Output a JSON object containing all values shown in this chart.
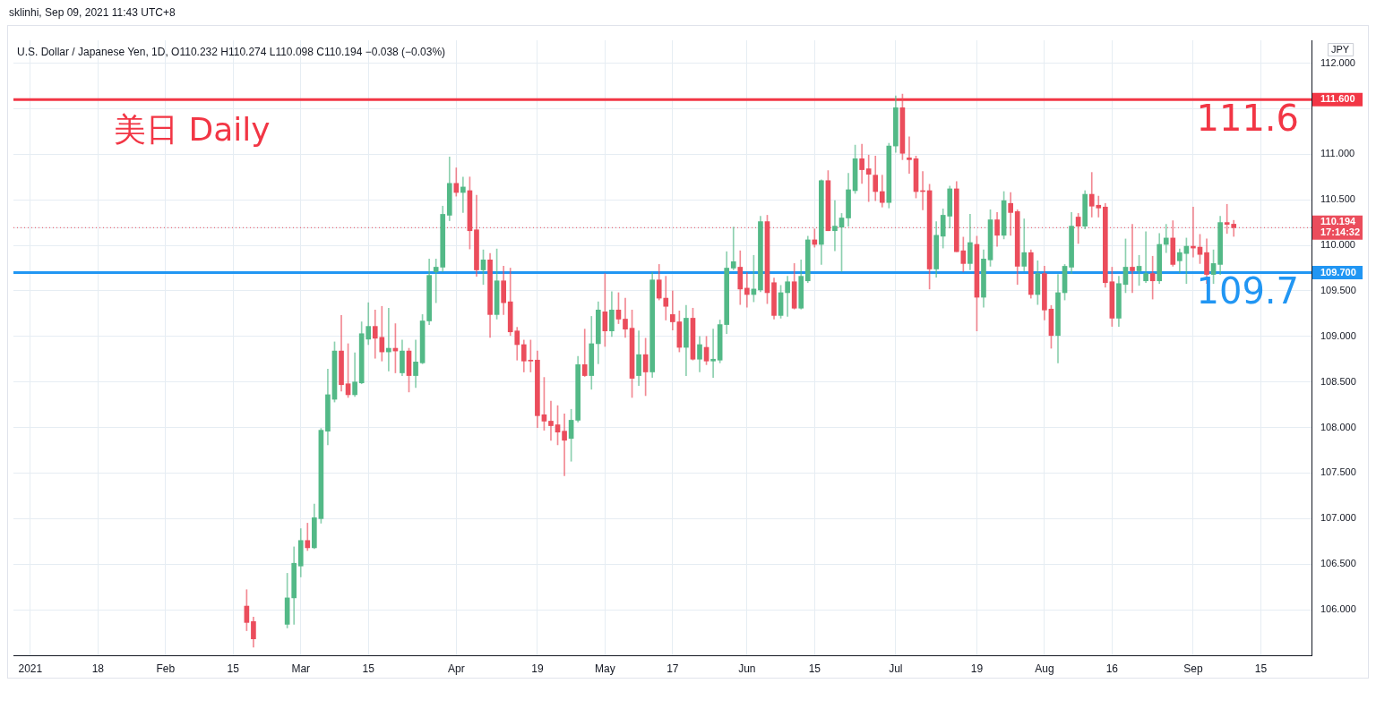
{
  "chart_data": {
    "type": "candlestick",
    "title": "美日 Daily",
    "subtitle": "U.S. Dollar / Japanese Yen, 1D, O110.232 H110.274 L110.098 C110.194 −0.038 (−0.03%)",
    "ylabel": "JPY",
    "annotations": [
      "sklinhi, Sep 09, 2021 11:43 UTC+8"
    ],
    "categories": [
      null,
      null,
      "2021",
      null,
      null,
      null,
      null,
      null,
      null,
      null,
      null,
      null,
      "18",
      null,
      null,
      null,
      null,
      null,
      null,
      null,
      null,
      null,
      "Feb",
      null,
      null,
      null,
      null,
      null,
      null,
      null,
      null,
      null,
      "15",
      null,
      null,
      null,
      null,
      null,
      null,
      null,
      null,
      null,
      "Mar",
      null,
      null,
      null,
      null,
      null,
      null,
      null,
      null,
      null,
      "15",
      null,
      null,
      null,
      null,
      null,
      null,
      null,
      null,
      null,
      null,
      null,
      null,
      "Apr",
      null,
      null,
      null,
      null,
      null,
      null,
      null,
      null,
      null,
      null,
      null,
      "19",
      null,
      null,
      null,
      null,
      null,
      null,
      null,
      null,
      null,
      "May",
      null,
      null,
      null,
      null,
      null,
      null,
      null,
      null,
      null,
      "17",
      null,
      null,
      null,
      null,
      null,
      null,
      null,
      null,
      null,
      null,
      "Jun",
      null,
      null,
      null,
      null,
      null,
      null,
      null,
      null,
      null,
      "15",
      null,
      null,
      null,
      null,
      null,
      null,
      null,
      null,
      null,
      null,
      null,
      "Jul",
      null,
      null,
      null,
      null,
      null,
      null,
      null,
      null,
      null,
      null,
      null,
      "19",
      null,
      null,
      null,
      null,
      null,
      null,
      null,
      null,
      null,
      "Aug",
      null,
      null,
      null,
      null,
      null,
      null,
      null,
      null,
      null,
      "16",
      null,
      null,
      null,
      null,
      null,
      null,
      null,
      null,
      null,
      null,
      null,
      "Sep",
      null,
      null,
      null,
      null,
      null,
      null,
      null,
      null,
      null,
      "15",
      null,
      null,
      null,
      null,
      null,
      null,
      null
    ],
    "ohlc": [
      null,
      null,
      null,
      null,
      null,
      null,
      null,
      null,
      null,
      null,
      null,
      null,
      null,
      null,
      null,
      null,
      null,
      null,
      null,
      null,
      null,
      null,
      null,
      null,
      null,
      null,
      null,
      null,
      null,
      null,
      null,
      null,
      null,
      null,
      [
        106.04,
        106.22,
        105.77,
        105.86
      ],
      [
        105.87,
        105.92,
        105.59,
        105.68
      ],
      null,
      null,
      null,
      null,
      [
        105.84,
        106.4,
        105.8,
        106.13
      ],
      [
        106.13,
        106.69,
        105.84,
        106.51
      ],
      [
        106.48,
        106.89,
        106.36,
        106.76
      ],
      [
        106.76,
        106.95,
        106.65,
        106.68
      ],
      [
        106.68,
        107.16,
        106.67,
        107.01
      ],
      [
        107.0,
        107.99,
        106.95,
        107.97
      ],
      [
        107.96,
        108.64,
        107.81,
        108.36
      ],
      [
        108.31,
        108.94,
        108.28,
        108.84
      ],
      [
        108.84,
        109.23,
        108.4,
        108.47
      ],
      [
        108.48,
        108.92,
        108.33,
        108.36
      ],
      [
        108.36,
        108.82,
        108.34,
        108.5
      ],
      [
        108.49,
        109.16,
        108.48,
        109.03
      ],
      [
        108.97,
        109.37,
        108.91,
        109.11
      ],
      [
        109.11,
        109.29,
        108.76,
        108.98
      ],
      [
        108.99,
        109.33,
        108.73,
        108.83
      ],
      [
        108.83,
        109.31,
        108.62,
        108.87
      ],
      [
        108.87,
        109.14,
        108.6,
        108.84
      ],
      [
        108.6,
        108.96,
        108.57,
        108.84
      ],
      [
        108.84,
        108.87,
        108.39,
        108.57
      ],
      [
        108.57,
        108.96,
        108.44,
        108.72
      ],
      [
        108.71,
        109.24,
        108.7,
        109.17
      ],
      [
        109.17,
        109.85,
        109.13,
        109.67
      ],
      [
        109.71,
        109.85,
        109.37,
        109.76
      ],
      [
        109.76,
        110.43,
        109.71,
        110.34
      ],
      [
        110.33,
        110.97,
        110.27,
        110.68
      ],
      [
        110.68,
        110.85,
        110.54,
        110.58
      ],
      [
        110.58,
        110.75,
        110.36,
        110.64
      ],
      [
        110.6,
        110.75,
        109.96,
        110.16
      ],
      [
        110.17,
        110.55,
        109.66,
        109.73
      ],
      [
        109.73,
        109.95,
        109.57,
        109.84
      ],
      [
        109.84,
        109.91,
        108.99,
        109.24
      ],
      [
        109.24,
        109.96,
        109.19,
        109.61
      ],
      [
        109.61,
        109.77,
        109.24,
        109.37
      ],
      [
        109.38,
        109.75,
        109.01,
        109.05
      ],
      [
        109.06,
        109.1,
        108.74,
        108.91
      ],
      [
        108.91,
        108.96,
        108.61,
        108.73
      ],
      [
        108.74,
        108.96,
        108.61,
        108.73
      ],
      [
        108.74,
        108.84,
        108.0,
        108.13
      ],
      [
        108.14,
        108.55,
        107.97,
        108.07
      ],
      [
        108.07,
        108.29,
        107.86,
        108.02
      ],
      [
        108.03,
        108.24,
        107.81,
        107.95
      ],
      [
        107.96,
        108.15,
        107.47,
        107.86
      ],
      [
        107.88,
        108.2,
        107.63,
        108.08
      ],
      [
        108.08,
        108.78,
        108.06,
        108.69
      ],
      [
        108.69,
        109.08,
        108.56,
        108.57
      ],
      [
        108.57,
        109.22,
        108.42,
        108.92
      ],
      [
        108.92,
        109.38,
        108.7,
        109.29
      ],
      [
        109.27,
        109.69,
        108.89,
        109.06
      ],
      [
        109.06,
        109.49,
        109.0,
        109.29
      ],
      [
        109.29,
        109.48,
        109.14,
        109.19
      ],
      [
        109.19,
        109.42,
        108.99,
        109.08
      ],
      [
        109.09,
        109.29,
        108.33,
        108.54
      ],
      [
        108.57,
        109.06,
        108.46,
        108.8
      ],
      [
        108.8,
        108.98,
        108.35,
        108.61
      ],
      [
        108.61,
        109.7,
        108.55,
        109.62
      ],
      [
        109.62,
        109.79,
        109.4,
        109.42
      ],
      [
        109.42,
        109.66,
        109.18,
        109.33
      ],
      [
        109.24,
        109.5,
        109.07,
        109.16
      ],
      [
        109.16,
        109.28,
        108.83,
        108.88
      ],
      [
        108.88,
        109.34,
        108.57,
        109.2
      ],
      [
        109.2,
        109.31,
        108.74,
        108.75
      ],
      [
        108.75,
        109.0,
        108.61,
        108.91
      ],
      [
        108.88,
        109.0,
        108.69,
        108.73
      ],
      [
        108.73,
        109.08,
        108.55,
        108.75
      ],
      [
        108.74,
        109.18,
        108.71,
        109.13
      ],
      [
        109.13,
        109.93,
        109.03,
        109.75
      ],
      [
        109.75,
        110.2,
        109.73,
        109.82
      ],
      [
        109.76,
        109.94,
        109.35,
        109.52
      ],
      [
        109.53,
        109.7,
        109.32,
        109.46
      ],
      [
        109.46,
        109.89,
        109.38,
        109.52
      ],
      [
        109.51,
        110.32,
        109.49,
        110.26
      ],
      [
        110.26,
        110.33,
        109.36,
        109.48
      ],
      [
        109.59,
        109.64,
        109.19,
        109.23
      ],
      [
        109.23,
        109.56,
        109.2,
        109.48
      ],
      [
        109.48,
        109.66,
        109.22,
        109.6
      ],
      [
        109.6,
        109.8,
        109.3,
        109.31
      ],
      [
        109.31,
        109.84,
        109.3,
        109.66
      ],
      [
        109.61,
        110.1,
        109.59,
        110.06
      ],
      [
        110.06,
        110.18,
        109.98,
        110.01
      ],
      [
        110.01,
        110.72,
        109.79,
        110.71
      ],
      [
        110.71,
        110.82,
        110.16,
        110.16
      ],
      [
        110.16,
        110.49,
        109.94,
        110.21
      ],
      [
        110.2,
        110.35,
        109.71,
        110.3
      ],
      [
        110.3,
        110.79,
        110.21,
        110.61
      ],
      [
        110.6,
        111.1,
        110.57,
        110.95
      ],
      [
        110.95,
        111.11,
        110.68,
        110.83
      ],
      [
        110.84,
        110.99,
        110.48,
        110.78
      ],
      [
        110.77,
        110.98,
        110.49,
        110.59
      ],
      [
        110.59,
        110.77,
        110.42,
        110.47
      ],
      [
        110.47,
        111.12,
        110.41,
        111.09
      ],
      [
        111.09,
        111.64,
        111.02,
        111.51
      ],
      [
        111.51,
        111.66,
        110.94,
        111.01
      ],
      [
        110.96,
        111.19,
        110.79,
        110.94
      ],
      [
        110.95,
        110.98,
        110.52,
        110.59
      ],
      [
        110.6,
        110.81,
        110.39,
        110.59
      ],
      [
        110.6,
        110.67,
        109.52,
        109.74
      ],
      [
        109.74,
        110.26,
        109.65,
        110.11
      ],
      [
        110.1,
        110.4,
        109.97,
        110.33
      ],
      [
        110.32,
        110.65,
        110.19,
        110.62
      ],
      [
        110.62,
        110.7,
        109.93,
        109.93
      ],
      [
        109.94,
        110.09,
        109.71,
        109.8
      ],
      [
        109.8,
        110.34,
        109.73,
        110.03
      ],
      [
        110.01,
        110.1,
        109.06,
        109.43
      ],
      [
        109.43,
        109.95,
        109.32,
        109.85
      ],
      [
        109.84,
        110.39,
        109.77,
        110.28
      ],
      [
        110.28,
        110.36,
        109.99,
        110.11
      ],
      [
        110.11,
        110.59,
        110.07,
        110.49
      ],
      [
        110.46,
        110.58,
        110.11,
        110.36
      ],
      [
        110.37,
        110.39,
        109.57,
        109.77
      ],
      [
        109.77,
        110.29,
        109.72,
        109.92
      ],
      [
        109.92,
        109.95,
        109.42,
        109.46
      ],
      [
        109.46,
        109.83,
        109.35,
        109.69
      ],
      [
        109.69,
        109.77,
        109.18,
        109.29
      ],
      [
        109.3,
        109.34,
        108.87,
        109.01
      ],
      [
        109.01,
        109.68,
        108.71,
        109.48
      ],
      [
        109.48,
        109.79,
        109.4,
        109.77
      ],
      [
        109.76,
        110.36,
        109.69,
        110.21
      ],
      [
        110.31,
        110.35,
        110.02,
        110.21
      ],
      [
        110.21,
        110.6,
        110.18,
        110.56
      ],
      [
        110.56,
        110.8,
        110.31,
        110.43
      ],
      [
        110.44,
        110.54,
        110.31,
        110.41
      ],
      [
        110.42,
        110.46,
        109.54,
        109.59
      ],
      [
        109.6,
        109.76,
        109.11,
        109.2
      ],
      [
        109.2,
        109.66,
        109.11,
        109.58
      ],
      [
        109.57,
        110.07,
        109.48,
        109.76
      ],
      [
        109.76,
        110.23,
        109.48,
        109.72
      ],
      [
        109.72,
        109.89,
        109.56,
        109.77
      ],
      [
        109.61,
        110.15,
        109.59,
        109.69
      ],
      [
        109.69,
        109.88,
        109.41,
        109.61
      ],
      [
        109.61,
        110.13,
        109.58,
        110.01
      ],
      [
        110.01,
        110.23,
        109.92,
        110.08
      ],
      [
        110.08,
        110.27,
        109.77,
        109.79
      ],
      [
        109.83,
        109.96,
        109.7,
        109.92
      ],
      [
        109.91,
        110.08,
        109.58,
        109.99
      ],
      [
        109.99,
        110.42,
        109.87,
        109.97
      ],
      [
        109.98,
        110.12,
        109.8,
        109.9
      ],
      [
        109.92,
        110.07,
        109.58,
        109.68
      ],
      [
        109.68,
        109.95,
        109.58,
        109.8
      ],
      [
        109.79,
        110.32,
        109.68,
        110.25
      ],
      [
        110.25,
        110.45,
        110.13,
        110.23
      ],
      [
        110.232,
        110.274,
        110.098,
        110.194
      ],
      null,
      null,
      null,
      null,
      null,
      null,
      null,
      null,
      null,
      null,
      null
    ],
    "ylim": [
      105.5,
      112.25
    ],
    "yticks": [
      {
        "value": 106,
        "label": "106.000"
      },
      {
        "value": 106.5,
        "label": "106.500"
      },
      {
        "value": 107,
        "label": "107.000"
      },
      {
        "value": 107.5,
        "label": "107.500"
      },
      {
        "value": 108,
        "label": "108.000"
      },
      {
        "value": 108.5,
        "label": "108.500"
      },
      {
        "value": 109,
        "label": "109.000"
      },
      {
        "value": 109.5,
        "label": "109.500"
      },
      {
        "value": 109.7,
        "label": "109.700"
      },
      {
        "value": 110,
        "label": "110.000"
      },
      {
        "value": 110.194,
        "label": "110.194\n17:14:32"
      },
      {
        "value": 110.5,
        "label": "110.500"
      },
      {
        "value": 111,
        "label": "111.000"
      },
      {
        "value": 111.5,
        "label": null
      },
      {
        "value": 111.6,
        "label": "111.600"
      },
      {
        "value": 112,
        "label": "112.000"
      }
    ],
    "ref_lines": [
      {
        "axis": "y",
        "value": 111.6,
        "label": "111.6",
        "color": "#f23645"
      },
      {
        "axis": "y",
        "value": 109.7,
        "label": "109.7",
        "color": "#2196f3"
      },
      {
        "axis": "y",
        "value": 110.194,
        "color": "#eb4d5c",
        "line_style": "dotted"
      }
    ],
    "grid": true,
    "legend": false
  }
}
